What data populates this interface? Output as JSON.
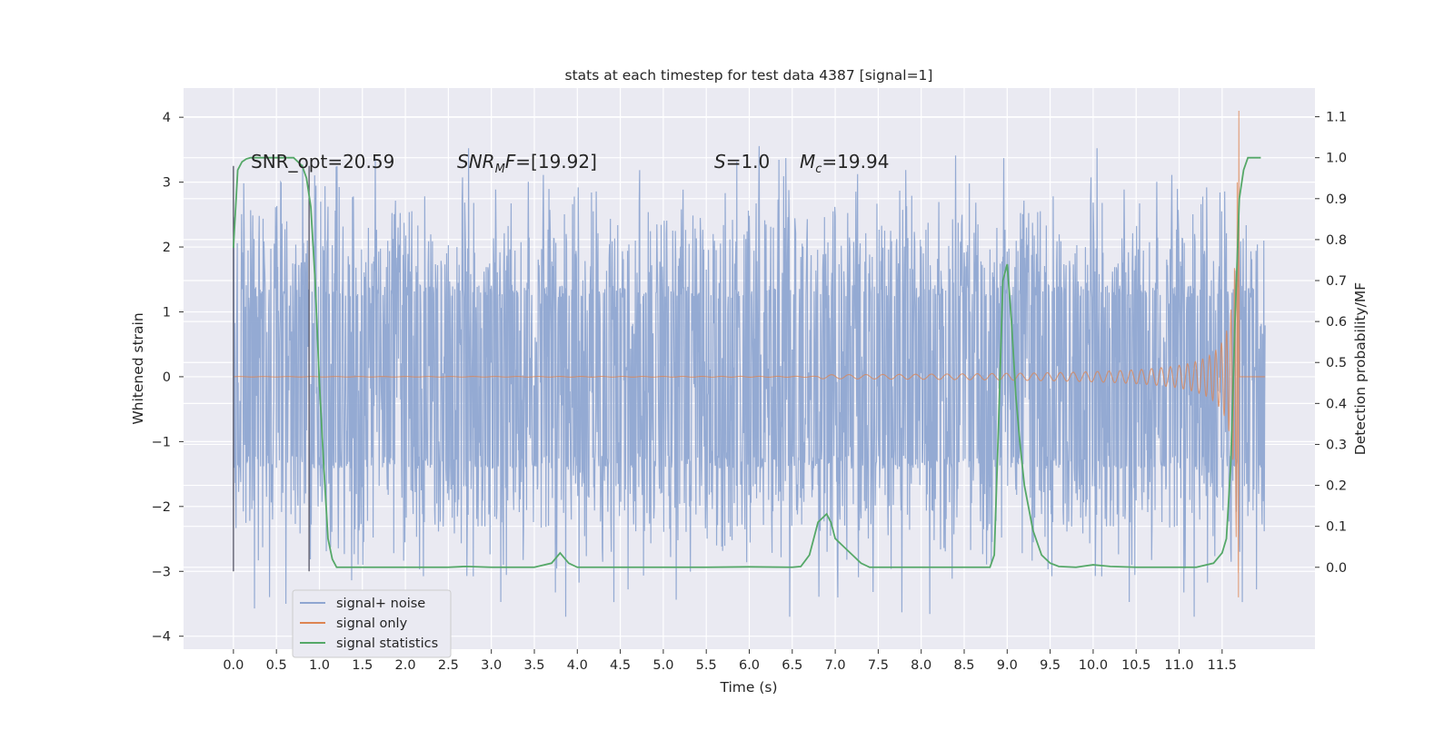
{
  "chart_data": {
    "type": "line",
    "title": "stats at each timestep for test data 4387 [signal=1]",
    "xlabel": "Time (s)",
    "ylabel_left": "Whitened strain",
    "ylabel_right": "Detection probability/MF",
    "xlim": [
      -0.58,
      12.58
    ],
    "ylim_left": [
      -4.2,
      4.45
    ],
    "ylim_right": [
      -0.2,
      1.17
    ],
    "x_ticks": [
      0.0,
      0.5,
      1.0,
      1.5,
      2.0,
      2.5,
      3.0,
      3.5,
      4.0,
      4.5,
      5.0,
      5.5,
      6.0,
      6.5,
      7.0,
      7.5,
      8.0,
      8.5,
      9.0,
      9.5,
      10.0,
      10.5,
      11.0,
      11.5
    ],
    "x_tick_labels": [
      "0.0",
      "0.5",
      "1.0",
      "1.5",
      "2.0",
      "2.5",
      "3.0",
      "3.5",
      "4.0",
      "4.5",
      "5.0",
      "5.5",
      "6.0",
      "6.5",
      "7.0",
      "7.5",
      "8.0",
      "8.5",
      "9.0",
      "9.5",
      "10.0",
      "10.5",
      "11.0",
      "11.5"
    ],
    "y_left_ticks": [
      -4,
      -3,
      -2,
      -1,
      0,
      1,
      2,
      3,
      4
    ],
    "y_left_tick_labels": [
      "−4",
      "−3",
      "−2",
      "−1",
      "0",
      "1",
      "2",
      "3",
      "4"
    ],
    "y_right_ticks": [
      0.0,
      0.1,
      0.2,
      0.3,
      0.4,
      0.5,
      0.6,
      0.7,
      0.8,
      0.9,
      1.0,
      1.1
    ],
    "y_right_tick_labels": [
      "0.0",
      "0.1",
      "0.2",
      "0.3",
      "0.4",
      "0.5",
      "0.6",
      "0.7",
      "0.8",
      "0.9",
      "1.0",
      "1.1"
    ],
    "grid": true,
    "legend_position": "lower-left",
    "annotations": {
      "snr_opt": "SNR_opt=20.59",
      "snr_mf_prefix": "SNR",
      "snr_mf_sub": "M",
      "snr_mf_suffix": "F=[19.92]",
      "s_label": "S",
      "s_value": "=1.0",
      "mc_label": "M",
      "mc_sub": "c",
      "mc_value": "=19.94"
    },
    "vertical_markers": [
      0.0,
      0.88
    ],
    "vertical_marker_range": [
      -3.0,
      3.25
    ],
    "series": [
      {
        "name": "signal+ noise",
        "color": "#8fa6d1",
        "axis": "left",
        "description_range": [
          0.0,
          12.0
        ],
        "envelope": {
          "dense": 1.35,
          "spike_max": 3.6,
          "spike_min": -3.7
        }
      },
      {
        "name": "signal only",
        "color": "#dd8452",
        "axis": "left",
        "chirp_start": 6.8,
        "merger_time": 11.7,
        "peak_max": 4.1,
        "peak_min": -3.4
      },
      {
        "name": "signal statistics",
        "color": "#55a868",
        "axis": "right",
        "x": [
          0.0,
          0.05,
          0.1,
          0.15,
          0.2,
          0.3,
          0.4,
          0.5,
          0.6,
          0.7,
          0.8,
          0.85,
          0.9,
          0.95,
          1.0,
          1.05,
          1.1,
          1.15,
          1.2,
          1.3,
          1.4,
          1.6,
          2.0,
          2.5,
          2.7,
          3.0,
          3.5,
          3.7,
          3.8,
          3.9,
          4.0,
          4.2,
          5.0,
          5.5,
          6.0,
          6.5,
          6.6,
          6.7,
          6.8,
          6.9,
          6.95,
          7.0,
          7.1,
          7.2,
          7.3,
          7.4,
          7.5,
          7.7,
          8.0,
          8.5,
          8.8,
          8.85,
          8.9,
          8.95,
          9.0,
          9.05,
          9.1,
          9.15,
          9.2,
          9.3,
          9.4,
          9.5,
          9.6,
          9.8,
          10.0,
          10.2,
          10.5,
          11.0,
          11.2,
          11.4,
          11.5,
          11.55,
          11.6,
          11.65,
          11.7,
          11.75,
          11.8,
          11.85,
          11.9,
          11.95
        ],
        "y": [
          0.78,
          0.97,
          0.99,
          0.997,
          1.0,
          1.0,
          1.0,
          1.0,
          1.0,
          1.0,
          0.98,
          0.95,
          0.88,
          0.7,
          0.45,
          0.25,
          0.07,
          0.02,
          0.0,
          0.0,
          0.0,
          0.0,
          0.0,
          0.0,
          0.002,
          0.0,
          0.0,
          0.01,
          0.035,
          0.01,
          0.0,
          0.0,
          0.0,
          0.0,
          0.001,
          0.0,
          0.002,
          0.03,
          0.11,
          0.13,
          0.11,
          0.07,
          0.05,
          0.03,
          0.01,
          0.0,
          0.0,
          0.0,
          0.0,
          0.0,
          0.0,
          0.03,
          0.35,
          0.7,
          0.74,
          0.6,
          0.42,
          0.3,
          0.2,
          0.09,
          0.03,
          0.01,
          0.002,
          0.0,
          0.006,
          0.002,
          0.0,
          0.0,
          0.0,
          0.01,
          0.035,
          0.07,
          0.25,
          0.6,
          0.9,
          0.97,
          1.0,
          1.0,
          1.0,
          1.0
        ]
      }
    ]
  }
}
